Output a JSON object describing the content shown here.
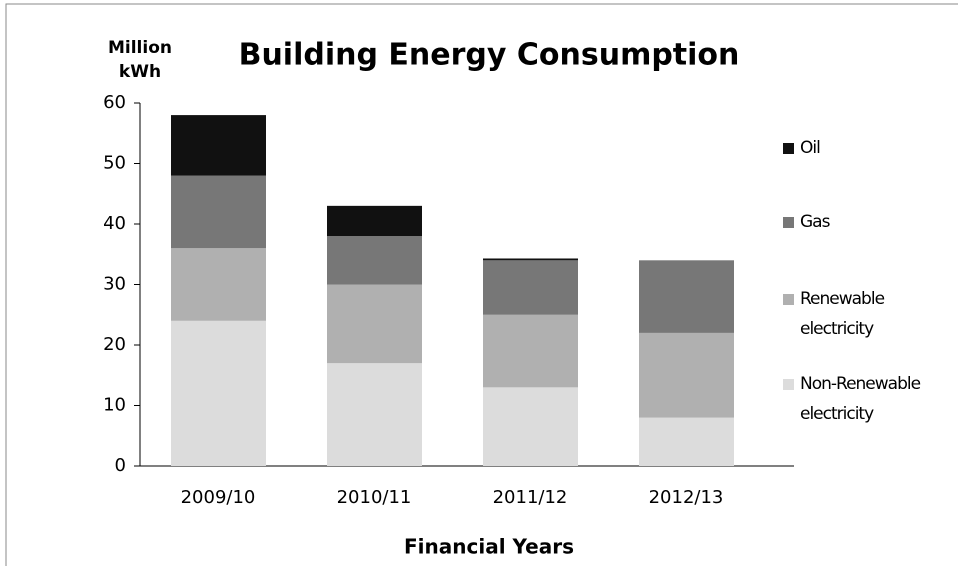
{
  "chart_data": {
    "type": "stacked_bar",
    "title": "Building Energy Consumption",
    "y_label": "Million kWh",
    "x_label": "Financial Years",
    "categories": [
      "2009/10",
      "2010/11",
      "2011/12",
      "2012/13"
    ],
    "series": [
      {
        "name": "Non-Renewable electricity",
        "color": "#dcdcdc",
        "values": [
          24,
          17,
          13,
          8
        ]
      },
      {
        "name": "Renewable electricity",
        "color": "#b0b0b0",
        "values": [
          12,
          13,
          12,
          14
        ]
      },
      {
        "name": "Gas",
        "color": "#777777",
        "values": [
          12,
          8,
          9,
          12
        ]
      },
      {
        "name": "Oil",
        "color": "#111111",
        "values": [
          10,
          5,
          0.3,
          0
        ]
      }
    ],
    "ylim": [
      0,
      60
    ],
    "yticks": [
      0,
      10,
      20,
      30,
      40,
      50,
      60
    ],
    "legend": "right"
  }
}
